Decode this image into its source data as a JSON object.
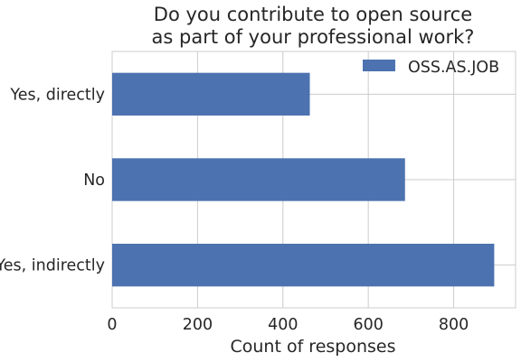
{
  "chart_data": {
    "type": "bar",
    "orientation": "horizontal",
    "title": [
      "Do you contribute to open source",
      "as part of your professional work?"
    ],
    "xlabel": "Count of responses",
    "ylabel": "",
    "categories": [
      "Yes, directly",
      "No",
      "Yes, indirectly"
    ],
    "series": [
      {
        "name": "OSS.AS.JOB",
        "values": [
          463,
          686,
          895
        ],
        "color": "#4c72b0"
      }
    ],
    "xlim": [
      0,
      945
    ],
    "xticks": [
      0,
      200,
      400,
      600,
      800
    ],
    "grid": true,
    "legend_position": "top-right"
  }
}
